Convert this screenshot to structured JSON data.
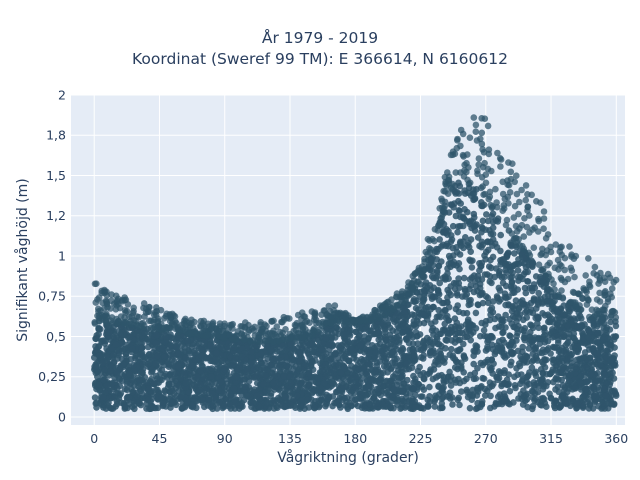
{
  "chart_data": {
    "type": "scatter",
    "title": "År 1979 - 2019",
    "subtitle": "Koordinat (Sweref 99 TM): E 366614, N 6160612",
    "xlabel": "Vågriktning (grader)",
    "ylabel": "Signifikant våghöjd (m)",
    "xlim": [
      -16,
      366
    ],
    "ylim": [
      -0.05,
      2.0
    ],
    "x_ticks": [
      0,
      45,
      90,
      135,
      180,
      225,
      270,
      315,
      360
    ],
    "x_tick_labels": [
      "0",
      "45",
      "90",
      "135",
      "180",
      "225",
      "270",
      "315",
      "360"
    ],
    "y_ticks": [
      0,
      0.25,
      0.5,
      0.75,
      1,
      1.25,
      1.5,
      1.75,
      2
    ],
    "y_tick_labels": [
      "0",
      "0,25",
      "0,5",
      "0,75",
      "1",
      "1,2",
      "1,5",
      "1,8",
      "2"
    ],
    "grid": true,
    "marker_color": "#2f556b",
    "plot_background": "#e5ecf6",
    "upper_envelope": [
      [
        0,
        0.84
      ],
      [
        10,
        0.8
      ],
      [
        20,
        0.75
      ],
      [
        30,
        0.7
      ],
      [
        40,
        0.72
      ],
      [
        50,
        0.66
      ],
      [
        60,
        0.62
      ],
      [
        75,
        0.6
      ],
      [
        90,
        0.58
      ],
      [
        105,
        0.59
      ],
      [
        120,
        0.6
      ],
      [
        135,
        0.64
      ],
      [
        150,
        0.66
      ],
      [
        165,
        0.7
      ],
      [
        180,
        0.6
      ],
      [
        195,
        0.68
      ],
      [
        205,
        0.75
      ],
      [
        215,
        0.82
      ],
      [
        225,
        0.96
      ],
      [
        235,
        1.25
      ],
      [
        245,
        1.62
      ],
      [
        252,
        1.8
      ],
      [
        260,
        1.86
      ],
      [
        268,
        1.9
      ],
      [
        275,
        1.78
      ],
      [
        285,
        1.62
      ],
      [
        295,
        1.5
      ],
      [
        305,
        1.38
      ],
      [
        315,
        1.22
      ],
      [
        325,
        1.1
      ],
      [
        335,
        1.0
      ],
      [
        345,
        0.98
      ],
      [
        352,
        0.94
      ],
      [
        360,
        0.92
      ]
    ],
    "dense_top": [
      [
        0,
        0.58
      ],
      [
        20,
        0.58
      ],
      [
        40,
        0.55
      ],
      [
        60,
        0.52
      ],
      [
        80,
        0.5
      ],
      [
        100,
        0.48
      ],
      [
        120,
        0.46
      ],
      [
        135,
        0.48
      ],
      [
        150,
        0.5
      ],
      [
        160,
        0.58
      ],
      [
        180,
        0.59
      ],
      [
        195,
        0.6
      ],
      [
        205,
        0.66
      ],
      [
        215,
        0.73
      ],
      [
        225,
        0.85
      ],
      [
        235,
        1.1
      ],
      [
        245,
        1.4
      ],
      [
        252,
        1.5
      ],
      [
        260,
        1.45
      ],
      [
        270,
        1.35
      ],
      [
        280,
        1.25
      ],
      [
        290,
        1.1
      ],
      [
        300,
        1.0
      ],
      [
        310,
        0.9
      ],
      [
        320,
        0.75
      ],
      [
        330,
        0.7
      ],
      [
        340,
        0.62
      ],
      [
        350,
        0.62
      ],
      [
        360,
        0.6
      ]
    ],
    "lower_bound": 0.05
  }
}
